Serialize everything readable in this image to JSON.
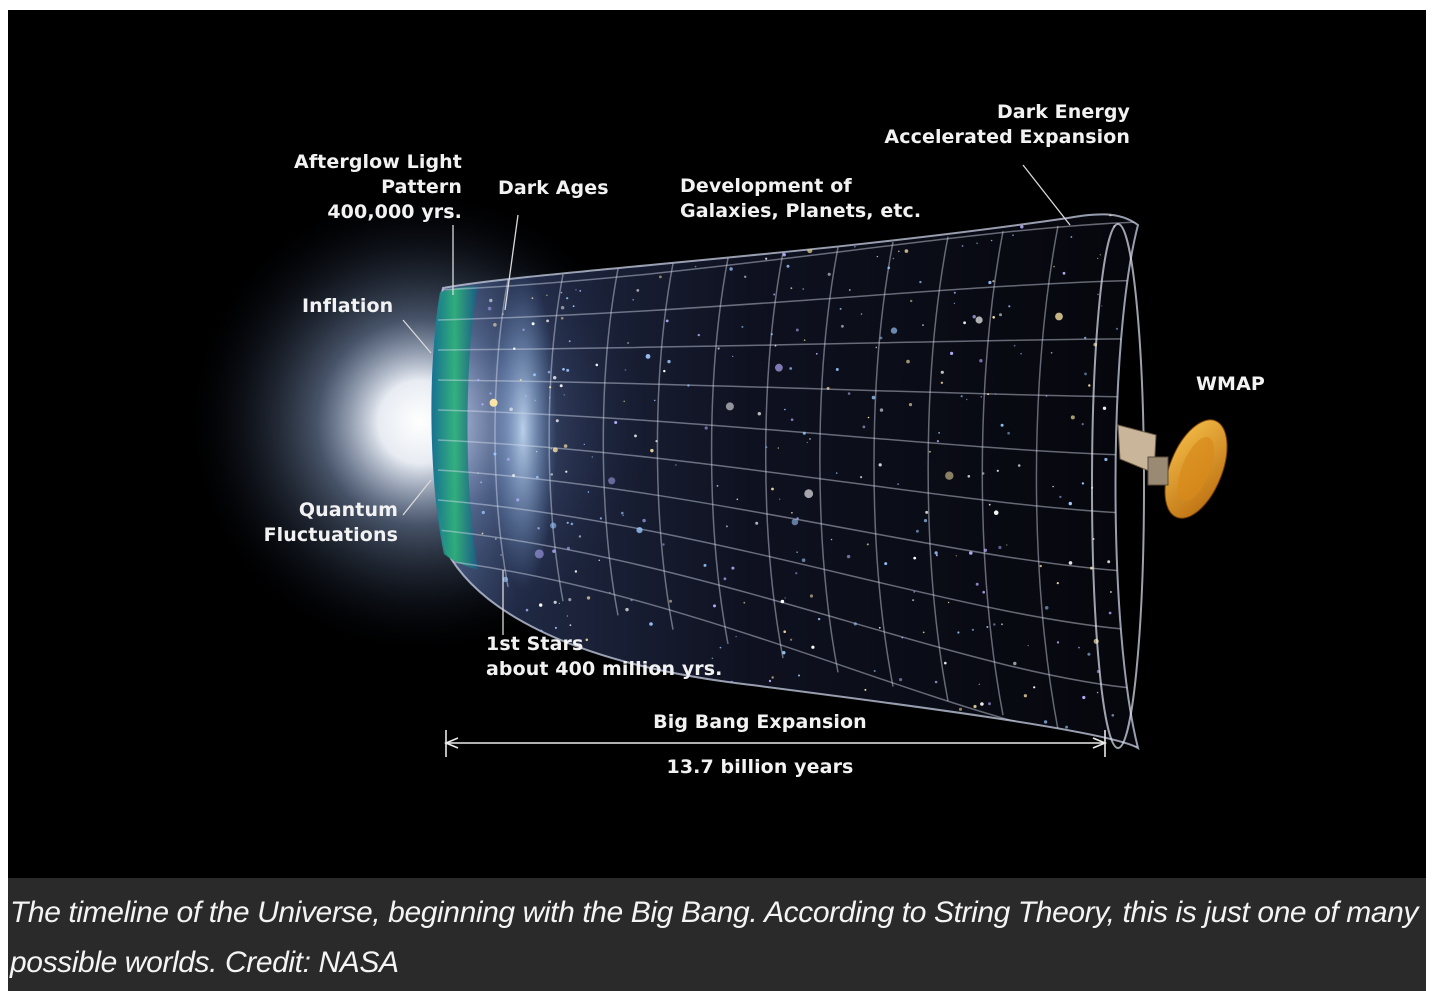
{
  "labels": {
    "afterglow": [
      "Afterglow Light",
      "Pattern",
      "400,000 yrs."
    ],
    "dark_ages": "Dark Ages",
    "development": [
      "Development of",
      "Galaxies, Planets, etc."
    ],
    "dark_energy": [
      "Dark Energy",
      "Accelerated Expansion"
    ],
    "inflation": "Inflation",
    "wmap": "WMAP",
    "quantum": [
      "Quantum",
      "Fluctuations"
    ],
    "first_stars": [
      "1st Stars",
      "about 400 million yrs."
    ],
    "big_bang_expansion": "Big Bang Expansion",
    "duration": "13.7 billion years"
  },
  "caption": "The timeline of the Universe, beginning with the Big Bang. According to String Theory, this is just one of many possible worlds. Credit: NASA",
  "colors": {
    "background": "#000000",
    "caption_bg": "#2a2a2a",
    "label_text": "#f2f2f2",
    "cmb": "#1fa37a",
    "satellite_dish": "#e0961e"
  }
}
